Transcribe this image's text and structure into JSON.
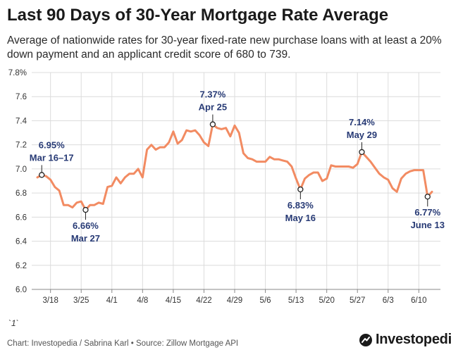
{
  "header": {
    "title": "Last 90 Days of 30-Year Mortgage Rate Average",
    "subtitle": "Average of nationwide rates for 30-year fixed-rate new purchase loans with at least a 20% down payment and an applicant credit score of 680 to 739."
  },
  "footer": {
    "note": "`1`",
    "source": "Chart: Investopedia / Sabrina Karl • Source: Zillow Mortgage API",
    "brand": "Investopedia"
  },
  "colors": {
    "line": "#f28b62",
    "annotation": "#273a75",
    "grid": "#dcdcdc",
    "axis": "#888888"
  },
  "chart_data": {
    "type": "line",
    "title": "Last 90 Days of 30-Year Mortgage Rate Average",
    "xlabel": "",
    "ylabel": "",
    "ylim": [
      6.0,
      7.8
    ],
    "x_domain": [
      1,
      91
    ],
    "y_ticks": [
      {
        "value": 7.8,
        "label": "7.8%"
      },
      {
        "value": 7.6,
        "label": "7.6"
      },
      {
        "value": 7.4,
        "label": "7.4"
      },
      {
        "value": 7.2,
        "label": "7.2"
      },
      {
        "value": 7.0,
        "label": "7.0"
      },
      {
        "value": 6.8,
        "label": "6.8"
      },
      {
        "value": 6.6,
        "label": "6.6"
      },
      {
        "value": 6.4,
        "label": "6.4"
      },
      {
        "value": 6.2,
        "label": "6.2"
      },
      {
        "value": 6.0,
        "label": "6.0"
      }
    ],
    "x_ticks": [
      {
        "day": 4,
        "label": "3/18"
      },
      {
        "day": 11,
        "label": "3/25"
      },
      {
        "day": 18,
        "label": "4/1"
      },
      {
        "day": 25,
        "label": "4/8"
      },
      {
        "day": 32,
        "label": "4/15"
      },
      {
        "day": 39,
        "label": "4/22"
      },
      {
        "day": 46,
        "label": "4/29"
      },
      {
        "day": 53,
        "label": "5/6"
      },
      {
        "day": 60,
        "label": "5/13"
      },
      {
        "day": 67,
        "label": "5/20"
      },
      {
        "day": 74,
        "label": "5/27"
      },
      {
        "day": 81,
        "label": "6/3"
      },
      {
        "day": 88,
        "label": "6/10"
      }
    ],
    "series": [
      {
        "name": "30-Year Mortgage Rate Average",
        "points": [
          [
            1,
            6.93
          ],
          [
            2,
            6.95
          ],
          [
            3,
            6.94
          ],
          [
            4,
            6.91
          ],
          [
            5,
            6.85
          ],
          [
            6,
            6.82
          ],
          [
            7,
            6.7
          ],
          [
            8,
            6.7
          ],
          [
            9,
            6.68
          ],
          [
            10,
            6.72
          ],
          [
            11,
            6.73
          ],
          [
            12,
            6.66
          ],
          [
            13,
            6.7
          ],
          [
            14,
            6.7
          ],
          [
            15,
            6.72
          ],
          [
            16,
            6.71
          ],
          [
            17,
            6.85
          ],
          [
            18,
            6.86
          ],
          [
            19,
            6.93
          ],
          [
            20,
            6.88
          ],
          [
            21,
            6.93
          ],
          [
            22,
            6.96
          ],
          [
            23,
            6.96
          ],
          [
            24,
            7.0
          ],
          [
            25,
            6.93
          ],
          [
            26,
            7.16
          ],
          [
            27,
            7.2
          ],
          [
            28,
            7.16
          ],
          [
            29,
            7.18
          ],
          [
            30,
            7.18
          ],
          [
            31,
            7.22
          ],
          [
            32,
            7.31
          ],
          [
            33,
            7.21
          ],
          [
            34,
            7.24
          ],
          [
            35,
            7.32
          ],
          [
            36,
            7.31
          ],
          [
            37,
            7.32
          ],
          [
            38,
            7.28
          ],
          [
            39,
            7.22
          ],
          [
            40,
            7.19
          ],
          [
            41,
            7.37
          ],
          [
            42,
            7.34
          ],
          [
            43,
            7.33
          ],
          [
            44,
            7.34
          ],
          [
            45,
            7.27
          ],
          [
            46,
            7.36
          ],
          [
            47,
            7.3
          ],
          [
            48,
            7.13
          ],
          [
            49,
            7.09
          ],
          [
            50,
            7.08
          ],
          [
            51,
            7.06
          ],
          [
            52,
            7.06
          ],
          [
            53,
            7.06
          ],
          [
            54,
            7.1
          ],
          [
            55,
            7.08
          ],
          [
            56,
            7.08
          ],
          [
            57,
            7.07
          ],
          [
            58,
            7.06
          ],
          [
            59,
            7.02
          ],
          [
            60,
            6.92
          ],
          [
            61,
            6.83
          ],
          [
            62,
            6.92
          ],
          [
            63,
            6.95
          ],
          [
            64,
            6.97
          ],
          [
            65,
            6.97
          ],
          [
            66,
            6.9
          ],
          [
            67,
            6.92
          ],
          [
            68,
            7.03
          ],
          [
            69,
            7.02
          ],
          [
            70,
            7.02
          ],
          [
            71,
            7.02
          ],
          [
            72,
            7.02
          ],
          [
            73,
            7.01
          ],
          [
            74,
            7.04
          ],
          [
            75,
            7.14
          ],
          [
            76,
            7.1
          ],
          [
            77,
            7.06
          ],
          [
            78,
            7.01
          ],
          [
            79,
            6.96
          ],
          [
            80,
            6.93
          ],
          [
            81,
            6.91
          ],
          [
            82,
            6.84
          ],
          [
            83,
            6.81
          ],
          [
            84,
            6.92
          ],
          [
            85,
            6.96
          ],
          [
            86,
            6.98
          ],
          [
            87,
            6.99
          ],
          [
            88,
            6.99
          ],
          [
            89,
            6.99
          ],
          [
            90,
            6.77
          ],
          [
            91,
            6.81
          ]
        ]
      }
    ],
    "annotations": [
      {
        "day": 2,
        "value": 6.95,
        "rate": "6.95%",
        "date": "Mar 16–17",
        "position": "above"
      },
      {
        "day": 12,
        "value": 6.66,
        "rate": "6.66%",
        "date": "Mar 27",
        "position": "below"
      },
      {
        "day": 41,
        "value": 7.37,
        "rate": "7.37%",
        "date": "Apr 25",
        "position": "above"
      },
      {
        "day": 61,
        "value": 6.83,
        "rate": "6.83%",
        "date": "May 16",
        "position": "below"
      },
      {
        "day": 75,
        "value": 7.14,
        "rate": "7.14%",
        "date": "May 29",
        "position": "above"
      },
      {
        "day": 90,
        "value": 6.77,
        "rate": "6.77%",
        "date": "June 13",
        "position": "below"
      }
    ]
  }
}
